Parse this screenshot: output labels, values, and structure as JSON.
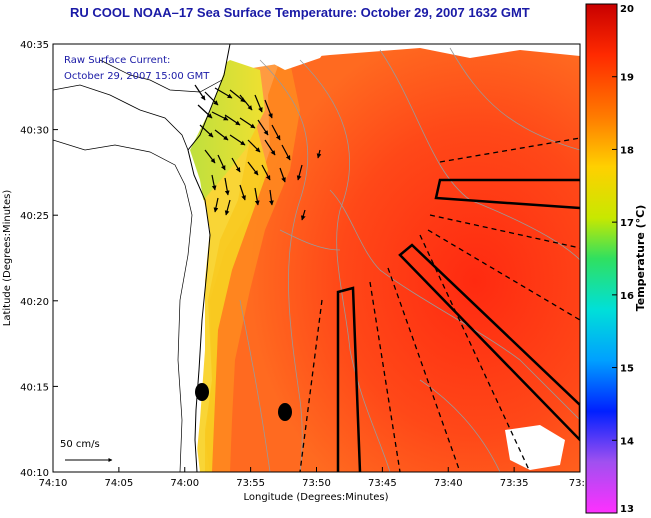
{
  "header": {
    "title": "RU COOL  NOAA–17  Sea Surface Temperature:  October 29, 2007 1632 GMT"
  },
  "annotation": {
    "line1": "Raw Surface Current:",
    "line2": "October 29, 2007 15:00 GMT"
  },
  "scale_label": "50 cm/s",
  "axes": {
    "xlabel": "Longitude (Degrees:Minutes)",
    "ylabel": "Latitude (Degrees:Minutes)",
    "x_ticks": [
      "74:10",
      "74:05",
      "74:00",
      "73:55",
      "73:50",
      "73:45",
      "73:40",
      "73:35",
      "73:3"
    ],
    "y_ticks": [
      "40:35",
      "40:30",
      "40:25",
      "40:20",
      "40:15",
      "40:10"
    ]
  },
  "colorbar": {
    "label": "Temperature (°C)",
    "ticks": [
      "20",
      "19",
      "18",
      "17",
      "16",
      "15",
      "14",
      "13"
    ],
    "range": [
      13,
      20
    ]
  },
  "colors": {
    "land": "#ffffff",
    "warm": "#ff3a10",
    "cool": "#a8d850",
    "title": "#1a1aa6"
  }
}
